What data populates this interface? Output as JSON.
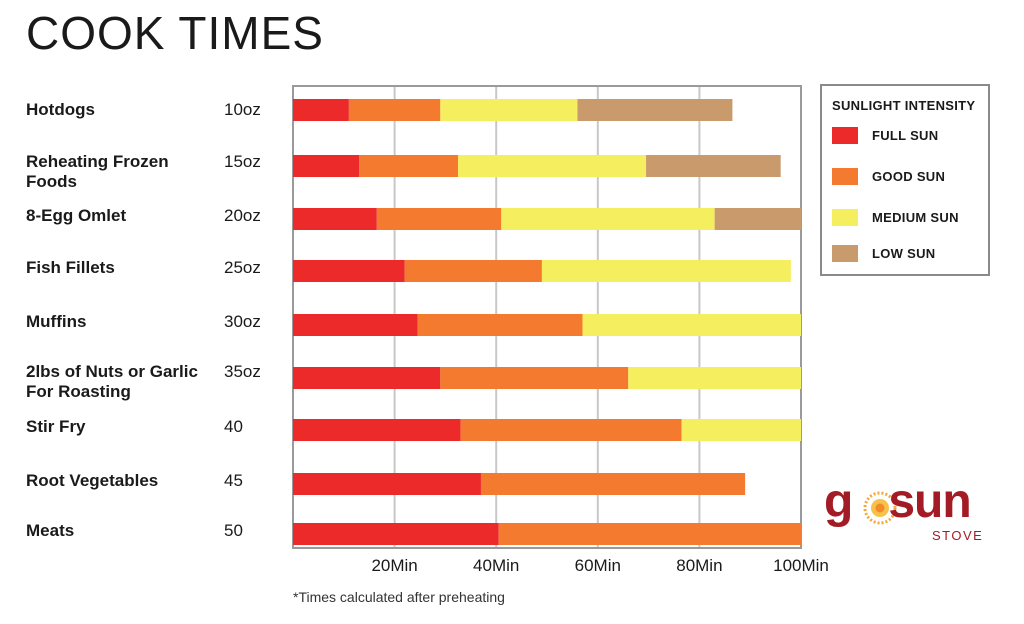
{
  "title": "COOK TIMES",
  "footnote": "*Times calculated after preheating",
  "legend": {
    "title": "SUNLIGHT INTENSITY",
    "items": [
      {
        "label": "FULL SUN",
        "color": "#ec2a2a"
      },
      {
        "label": "GOOD SUN",
        "color": "#f47a30"
      },
      {
        "label": "MEDIUM SUN",
        "color": "#f5ee5e"
      },
      {
        "label": "LOW SUN",
        "color": "#c99a6b"
      }
    ]
  },
  "logo": {
    "word": "gosun",
    "sub": "STOVE"
  },
  "rows": [
    {
      "label": "Hotdogs",
      "size": "10oz"
    },
    {
      "label": "Reheating Frozen Foods",
      "size": "15oz"
    },
    {
      "label": "8-Egg Omlet",
      "size": "20oz"
    },
    {
      "label": "Fish Fillets",
      "size": "25oz"
    },
    {
      "label": "Muffins",
      "size": "30oz"
    },
    {
      "label": "2lbs of Nuts or Garlic For Roasting",
      "size": "35oz"
    },
    {
      "label": "Stir Fry",
      "size": "40"
    },
    {
      "label": "Root Vegetables",
      "size": "45"
    },
    {
      "label": "Meats",
      "size": "50"
    }
  ],
  "chart_data": {
    "type": "bar",
    "orientation": "horizontal",
    "stacked": true,
    "title": "COOK TIMES",
    "categories": [
      "Hotdogs",
      "Reheating Frozen Foods",
      "8-Egg Omlet",
      "Fish Fillets",
      "Muffins",
      "2lbs of Nuts or Garlic For Roasting",
      "Stir Fry",
      "Root Vegetables",
      "Meats"
    ],
    "series": [
      {
        "name": "FULL SUN",
        "color": "#ec2a2a",
        "values": [
          11,
          13,
          16.5,
          22,
          24.5,
          29,
          33,
          37,
          40.5
        ]
      },
      {
        "name": "GOOD SUN",
        "color": "#f47a30",
        "values": [
          18,
          19.5,
          24.5,
          27,
          32.5,
          37,
          43.5,
          52,
          59.5
        ]
      },
      {
        "name": "MEDIUM SUN",
        "color": "#f5ee5e",
        "values": [
          27,
          37,
          42,
          49,
          43,
          34,
          23.5,
          0,
          0
        ]
      },
      {
        "name": "LOW SUN",
        "color": "#c99a6b",
        "values": [
          30.5,
          26.5,
          17,
          0,
          0,
          0,
          0,
          0,
          0
        ]
      }
    ],
    "xlim": [
      0,
      100
    ],
    "xticks": [
      20,
      40,
      60,
      80,
      100
    ],
    "xtick_labels": [
      "20Min",
      "40Min",
      "60Min",
      "80Min",
      "100Min"
    ],
    "grid": true,
    "legend_position": "right"
  }
}
